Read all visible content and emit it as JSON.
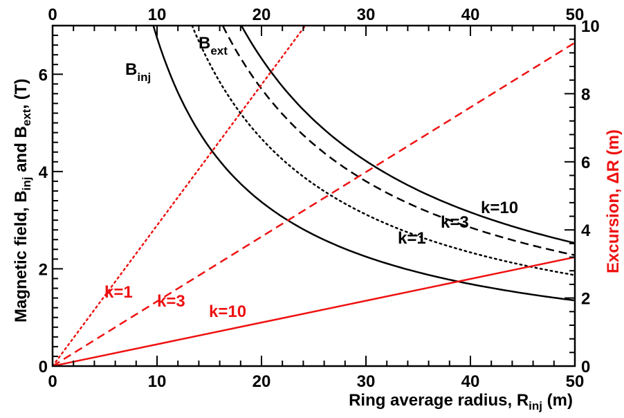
{
  "chart_data": {
    "type": "line",
    "x_axis": {
      "label_main": "Ring average radius, R",
      "label_sub": "inj",
      "label_unit": " (m)",
      "range": [
        0,
        50
      ],
      "ticks": [
        "0",
        "10",
        "20",
        "30",
        "40",
        "50"
      ],
      "top_ticks": [
        "0",
        "10",
        "20",
        "30",
        "40",
        "50"
      ]
    },
    "y_left": {
      "label_main": "Magnetic field, B",
      "label_sub1": "inj",
      "label_mid": " and B",
      "label_sub2": "ext",
      "label_unit": ", (T)",
      "range": [
        0,
        7
      ],
      "ticks": [
        "0",
        "2",
        "4",
        "6"
      ]
    },
    "y_right": {
      "label_main": "Excursion, ΔR (m)",
      "range": [
        0,
        10
      ],
      "ticks": [
        "0",
        "2",
        "4",
        "6",
        "8",
        "10"
      ],
      "color": "#ee1111"
    },
    "series": [
      {
        "name": "B_inj",
        "axis": "left",
        "style": "solid",
        "color": "#000000",
        "formula": "67.5/x",
        "x": [
          9.64,
          10,
          15,
          20,
          25,
          30,
          35,
          40,
          45,
          50
        ],
        "y": [
          7.0,
          6.75,
          4.5,
          3.38,
          2.7,
          2.25,
          1.93,
          1.69,
          1.5,
          1.35
        ]
      },
      {
        "name": "B_ext k=1",
        "axis": "left",
        "style": "dotted",
        "color": "#000000",
        "formula": "93.5/x",
        "x": [
          13.36,
          15,
          20,
          25,
          30,
          35,
          40,
          45,
          50
        ],
        "y": [
          7.0,
          6.23,
          4.68,
          3.74,
          3.12,
          2.67,
          2.34,
          2.08,
          1.87
        ]
      },
      {
        "name": "B_ext k=3",
        "axis": "left",
        "style": "dashed",
        "color": "#000000",
        "formula": "114/x",
        "x": [
          16.29,
          20,
          25,
          30,
          35,
          40,
          45,
          50
        ],
        "y": [
          7.0,
          5.7,
          4.56,
          3.8,
          3.26,
          2.85,
          2.53,
          2.28
        ]
      },
      {
        "name": "B_ext k=10",
        "axis": "left",
        "style": "solid",
        "color": "#000000",
        "formula": "126.5/x",
        "x": [
          18.07,
          20,
          25,
          30,
          35,
          40,
          45,
          50
        ],
        "y": [
          7.0,
          6.33,
          5.06,
          4.22,
          3.61,
          3.16,
          2.81,
          2.53
        ]
      },
      {
        "name": "ΔR k=1",
        "axis": "right",
        "style": "dotted",
        "color": "#ee1111",
        "x": [
          0,
          24.2
        ],
        "y": [
          0,
          10.0
        ]
      },
      {
        "name": "ΔR k=3",
        "axis": "right",
        "style": "dashed",
        "color": "#ee1111",
        "x": [
          0,
          50
        ],
        "y": [
          0,
          9.5
        ]
      },
      {
        "name": "ΔR k=10",
        "axis": "right",
        "style": "solid",
        "color": "#ee1111",
        "x": [
          0,
          50
        ],
        "y": [
          0,
          3.2
        ]
      }
    ],
    "annotations": [
      {
        "id": "b-inj",
        "main": "B",
        "sub": "inj",
        "color": "#000000"
      },
      {
        "id": "b-ext",
        "main": "B",
        "sub": "ext",
        "color": "#000000"
      },
      {
        "id": "black-k1",
        "text": "k=1",
        "color": "#000000"
      },
      {
        "id": "black-k3",
        "text": "k=3",
        "color": "#000000"
      },
      {
        "id": "black-k10",
        "text": "k=10",
        "color": "#000000"
      },
      {
        "id": "red-k1",
        "text": "k=1",
        "color": "#ee1111"
      },
      {
        "id": "red-k3",
        "text": "k=3",
        "color": "#ee1111"
      },
      {
        "id": "red-k10",
        "text": "k=10",
        "color": "#ee1111"
      }
    ],
    "grid": false
  }
}
